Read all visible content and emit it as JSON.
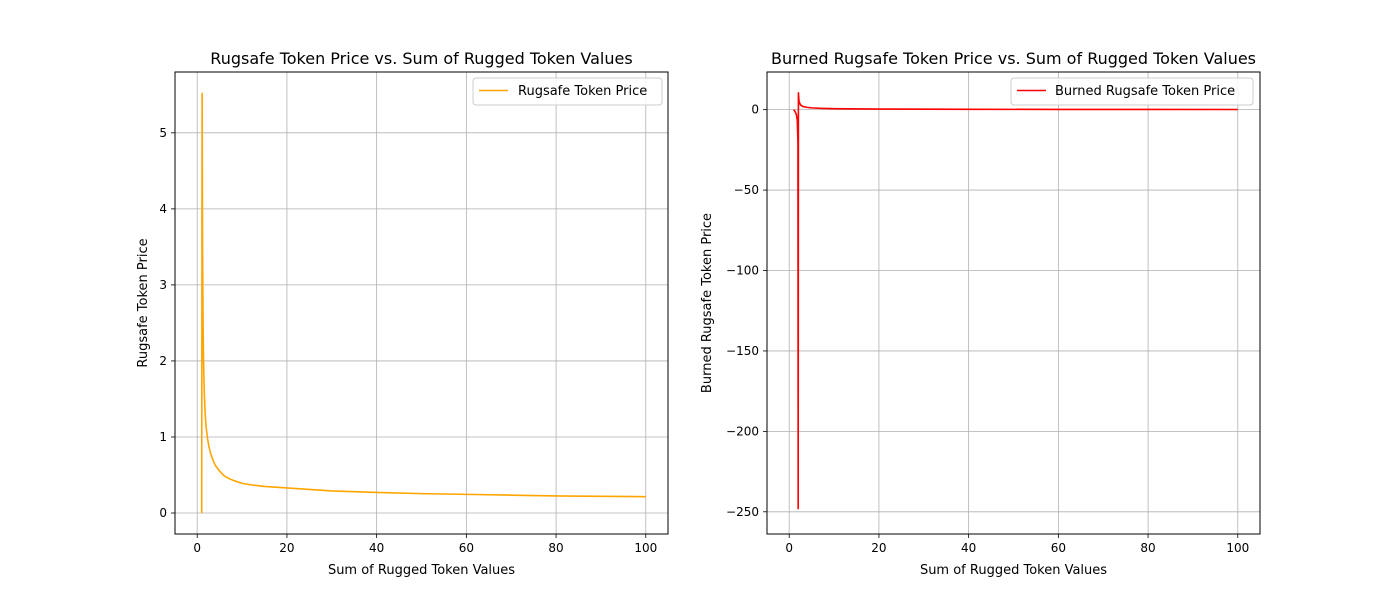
{
  "chart_data": [
    {
      "type": "line",
      "title": "Rugsafe Token Price vs. Sum of Rugged Token Values",
      "xlabel": "Sum of Rugged Token Values",
      "ylabel": "Rugsafe Token Price",
      "xlim": [
        -4.95,
        104.95
      ],
      "ylim": [
        -0.276,
        5.8
      ],
      "xticks": [
        0,
        20,
        40,
        60,
        80,
        100
      ],
      "yticks": [
        0,
        1,
        2,
        3,
        4,
        5
      ],
      "grid": true,
      "legend_position": "top-right",
      "series": [
        {
          "name": "Rugsafe Token Price",
          "color": "#ffa500",
          "x": [
            1.0,
            1.1,
            1.2,
            1.3,
            1.4,
            1.5,
            1.6,
            1.8,
            2.0,
            2.3,
            2.6,
            3.0,
            3.5,
            4,
            5,
            6,
            7,
            8,
            10,
            12,
            15,
            20,
            25,
            30,
            40,
            50,
            60,
            70,
            80,
            90,
            100
          ],
          "y": [
            0.0,
            5.52,
            3.4,
            2.55,
            2.05,
            1.75,
            1.55,
            1.28,
            1.12,
            0.98,
            0.88,
            0.78,
            0.7,
            0.63,
            0.55,
            0.49,
            0.455,
            0.43,
            0.39,
            0.37,
            0.35,
            0.33,
            0.31,
            0.29,
            0.27,
            0.255,
            0.245,
            0.235,
            0.225,
            0.22,
            0.215
          ]
        }
      ]
    },
    {
      "type": "line",
      "title": "Burned Rugsafe Token Price vs. Sum of Rugged Token Values",
      "xlabel": "Sum of Rugged Token Values",
      "ylabel": "Burned Rugsafe Token Price",
      "xlim": [
        -4.95,
        104.95
      ],
      "ylim": [
        -263.8,
        23.4
      ],
      "xticks": [
        0,
        20,
        40,
        60,
        80,
        100
      ],
      "yticks": [
        0,
        -50,
        -100,
        -150,
        -200,
        -250
      ],
      "grid": true,
      "legend_position": "top-right",
      "series": [
        {
          "name": "Burned Rugsafe Token Price",
          "color": "#ff0000",
          "x": [
            1.0,
            1.2,
            1.4,
            1.6,
            1.8,
            1.95,
            2.0,
            2.05,
            2.2,
            2.5,
            3.0,
            4,
            5,
            7,
            10,
            20,
            40,
            60,
            80,
            100
          ],
          "y": [
            0.0,
            -0.8,
            -1.7,
            -3.2,
            -6.5,
            -20.0,
            -248.0,
            10.5,
            5.0,
            3.0,
            2.0,
            1.4,
            1.1,
            0.8,
            0.6,
            0.35,
            0.2,
            0.15,
            0.1,
            0.08
          ]
        }
      ]
    }
  ]
}
